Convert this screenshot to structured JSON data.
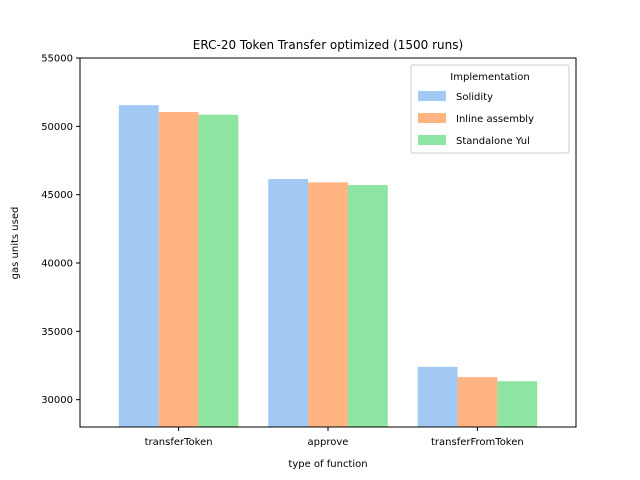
{
  "chart_data": {
    "type": "bar",
    "title": "ERC-20 Token Transfer optimized (1500 runs)",
    "xlabel": "type of function",
    "ylabel": "gas units used",
    "categories": [
      "transferToken",
      "approve",
      "transferFromToken"
    ],
    "series": [
      {
        "name": "Solidity",
        "color": "#a1c9f4",
        "values": [
          51550,
          46150,
          32400
        ]
      },
      {
        "name": "Inline assembly",
        "color": "#ffb482",
        "values": [
          51050,
          45900,
          31650
        ]
      },
      {
        "name": "Standalone Yul",
        "color": "#8de5a1",
        "values": [
          50850,
          45700,
          31350
        ]
      }
    ],
    "ylim": [
      28000,
      55000
    ],
    "yticks": [
      30000,
      35000,
      40000,
      45000,
      50000,
      55000
    ],
    "legend": {
      "title": "Implementation",
      "position": "top-right"
    },
    "grid": false
  }
}
